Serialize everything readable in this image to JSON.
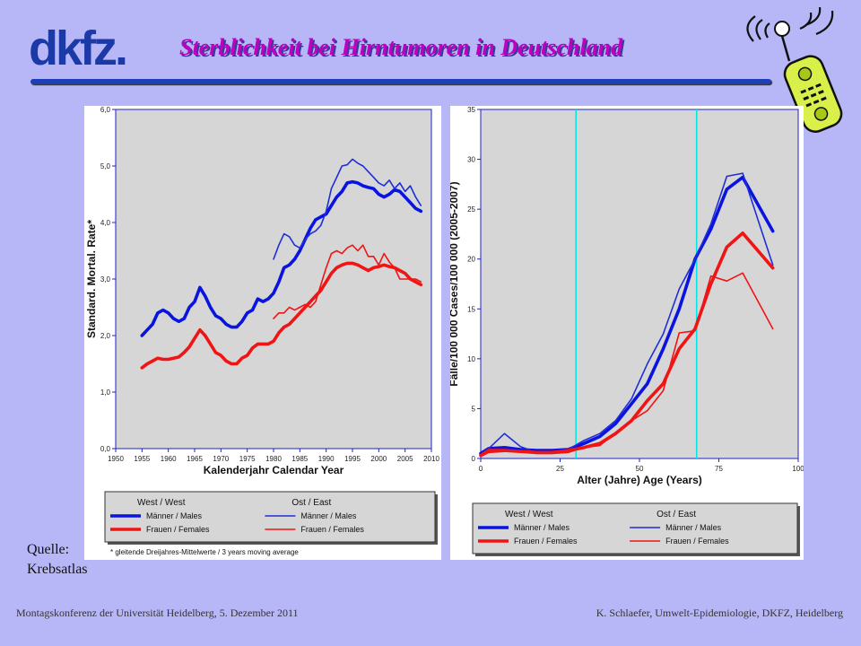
{
  "logo": {
    "text": "dkfz."
  },
  "slide_title": "Sterblichkeit bei Hirntumoren in Deutschland",
  "source_text": {
    "line1": "Quelle:",
    "line2": "Krebsatlas"
  },
  "footer": {
    "left": "Montagskonferenz der Universität Heidelberg, 5. Dezember 2011",
    "right": "K. Schlaefer, Umwelt-Epidemiologie, DKFZ, Heidelberg"
  },
  "colors": {
    "west": "#0a14e0",
    "ost": "#1f2ed6",
    "female": "#f01414",
    "axis": "#1d22c8",
    "plot_bg": "#d6d6d6",
    "guide": "#00e5e5"
  },
  "chart_data": [
    {
      "type": "line",
      "xlabel": "Kalenderjahr     Calendar Year",
      "ylabel": "Standard. Mortal. Rate*",
      "xlim": [
        1950,
        2010
      ],
      "ylim": [
        0,
        6
      ],
      "xticks": [
        "1950",
        "1955",
        "1960",
        "1965",
        "1970",
        "1975",
        "1980",
        "1985",
        "1990",
        "1995",
        "2000",
        "2005",
        "2010"
      ],
      "yticks": [
        "0,0",
        "1,0",
        "2,0",
        "3,0",
        "4,0",
        "5,0",
        "6,0"
      ],
      "legend": {
        "group_west": "West / West",
        "group_ost": "Ost / East",
        "males": "Männer / Males",
        "females": "Frauen / Females",
        "note": "* gleitende Dreijahres-Mittelwerte / 3 years moving average"
      },
      "series": [
        {
          "name": "West Männer / Males",
          "group": "west",
          "sex": "male",
          "x": [
            1955,
            1956,
            1957,
            1958,
            1959,
            1960,
            1961,
            1962,
            1963,
            1964,
            1965,
            1966,
            1967,
            1968,
            1969,
            1970,
            1971,
            1972,
            1973,
            1974,
            1975,
            1976,
            1977,
            1978,
            1979,
            1980,
            1981,
            1982,
            1983,
            1984,
            1985,
            1986,
            1987,
            1988,
            1989,
            1990,
            1991,
            1992,
            1993,
            1994,
            1995,
            1996,
            1997,
            1998,
            1999,
            2000,
            2001,
            2002,
            2003,
            2004,
            2005,
            2006,
            2007,
            2008
          ],
          "values": [
            2.0,
            2.1,
            2.2,
            2.4,
            2.45,
            2.4,
            2.3,
            2.25,
            2.3,
            2.5,
            2.6,
            2.85,
            2.7,
            2.5,
            2.35,
            2.3,
            2.2,
            2.15,
            2.15,
            2.25,
            2.4,
            2.45,
            2.65,
            2.6,
            2.65,
            2.75,
            2.95,
            3.2,
            3.25,
            3.35,
            3.5,
            3.7,
            3.9,
            4.05,
            4.1,
            4.15,
            4.3,
            4.45,
            4.55,
            4.7,
            4.72,
            4.7,
            4.65,
            4.62,
            4.6,
            4.5,
            4.45,
            4.5,
            4.58,
            4.55,
            4.45,
            4.35,
            4.25,
            4.2
          ]
        },
        {
          "name": "Ost Männer / Males",
          "group": "ost",
          "sex": "male",
          "x": [
            1980,
            1981,
            1982,
            1983,
            1984,
            1985,
            1986,
            1987,
            1988,
            1989,
            1990,
            1991,
            1992,
            1993,
            1994,
            1995,
            1996,
            1997,
            1998,
            1999,
            2000,
            2001,
            2002,
            2003,
            2004,
            2005,
            2006,
            2007,
            2008
          ],
          "values": [
            3.35,
            3.6,
            3.8,
            3.75,
            3.6,
            3.55,
            3.7,
            3.8,
            3.85,
            3.95,
            4.2,
            4.6,
            4.8,
            5.0,
            5.02,
            5.12,
            5.05,
            5.0,
            4.9,
            4.8,
            4.7,
            4.65,
            4.75,
            4.6,
            4.7,
            4.55,
            4.65,
            4.45,
            4.3
          ]
        },
        {
          "name": "West Frauen / Females",
          "group": "west",
          "sex": "female",
          "x": [
            1955,
            1956,
            1957,
            1958,
            1959,
            1960,
            1961,
            1962,
            1963,
            1964,
            1965,
            1966,
            1967,
            1968,
            1969,
            1970,
            1971,
            1972,
            1973,
            1974,
            1975,
            1976,
            1977,
            1978,
            1979,
            1980,
            1981,
            1982,
            1983,
            1984,
            1985,
            1986,
            1987,
            1988,
            1989,
            1990,
            1991,
            1992,
            1993,
            1994,
            1995,
            1996,
            1997,
            1998,
            1999,
            2000,
            2001,
            2002,
            2003,
            2004,
            2005,
            2006,
            2007,
            2008
          ],
          "values": [
            1.43,
            1.5,
            1.55,
            1.6,
            1.58,
            1.58,
            1.6,
            1.62,
            1.7,
            1.8,
            1.95,
            2.1,
            2.0,
            1.85,
            1.7,
            1.65,
            1.55,
            1.5,
            1.5,
            1.6,
            1.65,
            1.78,
            1.85,
            1.85,
            1.85,
            1.9,
            2.05,
            2.15,
            2.2,
            2.3,
            2.4,
            2.5,
            2.6,
            2.7,
            2.8,
            2.95,
            3.1,
            3.2,
            3.25,
            3.28,
            3.28,
            3.25,
            3.2,
            3.15,
            3.2,
            3.22,
            3.25,
            3.22,
            3.2,
            3.15,
            3.1,
            3.0,
            2.95,
            2.9
          ]
        },
        {
          "name": "Ost Frauen / Females",
          "group": "ost",
          "sex": "female",
          "x": [
            1980,
            1981,
            1982,
            1983,
            1984,
            1985,
            1986,
            1987,
            1988,
            1989,
            1990,
            1991,
            1992,
            1993,
            1994,
            1995,
            1996,
            1997,
            1998,
            1999,
            2000,
            2001,
            2002,
            2003,
            2004,
            2005,
            2006,
            2007,
            2008
          ],
          "values": [
            2.3,
            2.4,
            2.4,
            2.5,
            2.45,
            2.5,
            2.55,
            2.5,
            2.6,
            2.9,
            3.2,
            3.45,
            3.5,
            3.45,
            3.55,
            3.6,
            3.5,
            3.6,
            3.4,
            3.4,
            3.25,
            3.45,
            3.3,
            3.2,
            3.0,
            3.0,
            3.0,
            3.0,
            2.95
          ]
        }
      ]
    },
    {
      "type": "line",
      "xlabel": "Alter (Jahre)     Age (Years)",
      "ylabel": "Fälle/100 000    Cases/100 000      (2005-2007)",
      "xlim": [
        0,
        100
      ],
      "ylim": [
        0,
        35
      ],
      "xticks": [
        "0",
        "25",
        "50",
        "75",
        "100"
      ],
      "yticks": [
        "0",
        "5",
        "10",
        "15",
        "20",
        "25",
        "30",
        "35"
      ],
      "reference_lines_x": [
        30,
        68
      ],
      "legend": {
        "group_west": "West / West",
        "group_ost": "Ost / East",
        "males": "Männer / Males",
        "females": "Frauen / Females"
      },
      "series": [
        {
          "name": "West Männer / Males",
          "group": "west",
          "sex": "male",
          "x": [
            0,
            2.5,
            7.5,
            12.5,
            17.5,
            22.5,
            27.5,
            32.5,
            37.5,
            42.5,
            47.5,
            52.5,
            57.5,
            62.5,
            67.5,
            72.5,
            77.5,
            82.5,
            92
          ],
          "values": [
            0.5,
            1.0,
            1.1,
            0.9,
            0.8,
            0.8,
            0.9,
            1.5,
            2.2,
            3.5,
            5.5,
            7.5,
            11.0,
            15.0,
            20.0,
            23.0,
            27.0,
            28.2,
            22.8
          ]
        },
        {
          "name": "Ost Männer / Males",
          "group": "ost",
          "sex": "male",
          "x": [
            0,
            2.5,
            7.5,
            12.5,
            17.5,
            22.5,
            27.5,
            32.5,
            37.5,
            42.5,
            47.5,
            52.5,
            57.5,
            62.5,
            67.5,
            72.5,
            77.5,
            82.5,
            92
          ],
          "values": [
            0.4,
            1.0,
            2.5,
            1.2,
            0.6,
            0.6,
            0.9,
            1.8,
            2.5,
            3.8,
            6.0,
            9.5,
            12.5,
            17.0,
            20.0,
            23.5,
            28.3,
            28.6,
            19.4
          ]
        },
        {
          "name": "West Frauen / Females",
          "group": "west",
          "sex": "female",
          "x": [
            0,
            2.5,
            7.5,
            12.5,
            17.5,
            22.5,
            27.5,
            32.5,
            37.5,
            42.5,
            47.5,
            52.5,
            57.5,
            62.5,
            67.5,
            72.5,
            77.5,
            82.5,
            92
          ],
          "values": [
            0.3,
            0.8,
            0.8,
            0.7,
            0.6,
            0.6,
            0.8,
            1.1,
            1.5,
            2.5,
            3.8,
            5.8,
            7.5,
            11.0,
            13.0,
            17.5,
            21.2,
            22.6,
            19.1
          ]
        },
        {
          "name": "Ost Frauen / Females",
          "group": "ost",
          "sex": "female",
          "x": [
            0,
            2.5,
            7.5,
            12.5,
            17.5,
            22.5,
            27.5,
            32.5,
            37.5,
            42.5,
            47.5,
            52.5,
            57.5,
            62.5,
            67.5,
            72.5,
            77.5,
            82.5,
            92
          ],
          "values": [
            0.2,
            0.6,
            0.7,
            0.7,
            0.5,
            0.5,
            0.6,
            1.1,
            1.3,
            2.6,
            3.8,
            4.8,
            6.8,
            12.6,
            12.8,
            18.3,
            17.8,
            18.6,
            13.0
          ]
        }
      ]
    }
  ]
}
